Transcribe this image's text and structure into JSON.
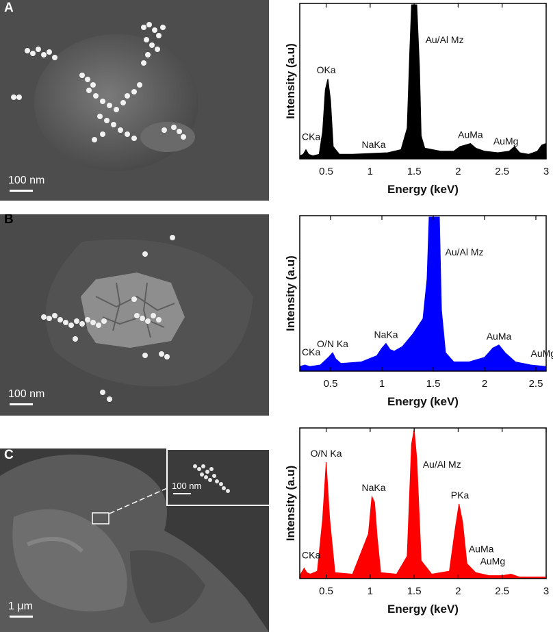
{
  "panels": [
    {
      "letter": "A",
      "scale_label": "100 nm"
    },
    {
      "letter": "B",
      "scale_label": "100 nm"
    },
    {
      "letter": "C",
      "scale_label": "1 μm",
      "inset_scale_label": "100 nm"
    }
  ],
  "chart_data": [
    {
      "type": "area",
      "title": "",
      "xlabel": "Energy (keV)",
      "ylabel": "Intensity (a.u)",
      "xlim": [
        0.2,
        3.0
      ],
      "ylim": [
        0,
        100
      ],
      "xticks": [
        0.5,
        1,
        1.5,
        2,
        2.5,
        3
      ],
      "xtick_labels": [
        "0.5",
        "1",
        "1.5",
        "2",
        "2.5",
        "3"
      ],
      "color": "#000000",
      "series": [
        {
          "x": [
            0.2,
            0.24,
            0.27,
            0.3,
            0.35,
            0.42,
            0.46,
            0.49,
            0.52,
            0.55,
            0.58,
            0.65,
            0.8,
            1.0,
            1.2,
            1.35,
            1.42,
            1.45,
            1.47,
            1.5,
            1.53,
            1.56,
            1.58,
            1.62,
            1.8,
            1.95,
            2.02,
            2.08,
            2.14,
            2.2,
            2.3,
            2.45,
            2.58,
            2.64,
            2.7,
            2.8,
            2.9,
            2.95,
            3.0
          ],
          "y": [
            2,
            3,
            6,
            3,
            2,
            3,
            18,
            45,
            52,
            38,
            8,
            3,
            3,
            3.5,
            4,
            6,
            20,
            70,
            100,
            100,
            100,
            60,
            15,
            7,
            5,
            5,
            8,
            9,
            10,
            7,
            5,
            4,
            5,
            8,
            4,
            3,
            5,
            9,
            10
          ]
        }
      ],
      "annotations": [
        {
          "text": "CKa",
          "x": 0.27,
          "y": 6
        },
        {
          "text": "OKa",
          "x": 0.5,
          "y": 52
        },
        {
          "text": "NaKa",
          "x": 1.04,
          "y": 3.5
        },
        {
          "text": "Au/Al Mz",
          "x": 1.55,
          "y": 100
        },
        {
          "text": "AuMa",
          "x": 2.14,
          "y": 10
        },
        {
          "text": "AuMg",
          "x": 2.4,
          "y": 4
        }
      ]
    },
    {
      "type": "area",
      "title": "",
      "xlabel": "Energy (keV)",
      "ylabel": "Intensity (a.u)",
      "xlim": [
        0.2,
        2.6
      ],
      "ylim": [
        0,
        100
      ],
      "xticks": [
        0.5,
        1,
        1.5,
        2,
        2.5
      ],
      "xtick_labels": [
        "0.5",
        "1",
        "1.5",
        "2",
        "2.5"
      ],
      "color": "#0000ff",
      "series": [
        {
          "x": [
            0.2,
            0.25,
            0.3,
            0.4,
            0.48,
            0.52,
            0.55,
            0.6,
            0.8,
            0.95,
            1.0,
            1.04,
            1.08,
            1.12,
            1.2,
            1.3,
            1.4,
            1.44,
            1.46,
            1.5,
            1.54,
            1.56,
            1.58,
            1.62,
            1.7,
            1.85,
            2.0,
            2.08,
            2.14,
            2.2,
            2.3,
            2.45,
            2.6
          ],
          "y": [
            3,
            4,
            3,
            4,
            9,
            12,
            8,
            5,
            6,
            10,
            15,
            18,
            14,
            13,
            16,
            24,
            34,
            60,
            100,
            100,
            100,
            100,
            40,
            12,
            6,
            6,
            9,
            15,
            17,
            12,
            6,
            4,
            3
          ]
        }
      ],
      "annotations": [
        {
          "text": "CKa",
          "x": 0.25,
          "y": 4
        },
        {
          "text": "O/N Ka",
          "x": 0.52,
          "y": 12
        },
        {
          "text": "NaKa",
          "x": 1.04,
          "y": 18
        },
        {
          "text": "Au/Al Mz",
          "x": 1.55,
          "y": 100
        },
        {
          "text": "AuMa",
          "x": 2.14,
          "y": 17
        },
        {
          "text": "AuMg",
          "x": 2.45,
          "y": 4
        }
      ]
    },
    {
      "type": "area",
      "title": "",
      "xlabel": "Energy (keV)",
      "ylabel": "Intensity (a.u)",
      "xlim": [
        0.2,
        3.0
      ],
      "ylim": [
        0,
        100
      ],
      "xticks": [
        0.5,
        1,
        1.5,
        2,
        2.5,
        3
      ],
      "xtick_labels": [
        "0.5",
        "1",
        "1.5",
        "2",
        "2.5",
        "3"
      ],
      "color": "#ff0000",
      "series": [
        {
          "x": [
            0.2,
            0.25,
            0.28,
            0.32,
            0.4,
            0.46,
            0.5,
            0.54,
            0.6,
            0.8,
            0.98,
            1.02,
            1.05,
            1.08,
            1.12,
            1.3,
            1.42,
            1.47,
            1.5,
            1.53,
            1.58,
            1.7,
            1.9,
            1.97,
            2.01,
            2.05,
            2.1,
            2.2,
            2.35,
            2.5,
            2.6,
            2.7,
            2.8,
            3.0
          ],
          "y": [
            2,
            7,
            4,
            3,
            5,
            40,
            78,
            40,
            4,
            3,
            30,
            55,
            51,
            28,
            4,
            3,
            15,
            90,
            100,
            80,
            12,
            3,
            5,
            35,
            50,
            38,
            10,
            4,
            2,
            2,
            3,
            1,
            1,
            1
          ]
        }
      ],
      "annotations": [
        {
          "text": "CKa",
          "x": 0.27,
          "y": 7
        },
        {
          "text": "O/N Ka",
          "x": 0.5,
          "y": 78
        },
        {
          "text": "NaKa",
          "x": 1.04,
          "y": 55
        },
        {
          "text": "Au/Al Mz",
          "x": 1.52,
          "y": 100
        },
        {
          "text": "PKa",
          "x": 2.02,
          "y": 50
        },
        {
          "text": "AuMa",
          "x": 2.12,
          "y": 14
        },
        {
          "text": "AuMg",
          "x": 2.25,
          "y": 4
        }
      ]
    }
  ]
}
